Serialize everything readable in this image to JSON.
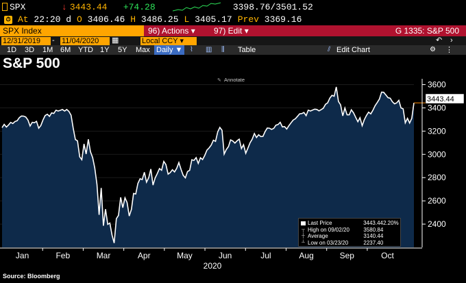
{
  "ticker": {
    "symbol": "SPX",
    "arrow": "↓",
    "last": "3443.44",
    "change": "+74.28",
    "range": "3398.76/3501.52"
  },
  "quote": {
    "at_label": "At",
    "at_time": "22:20 d",
    "open_label": "O",
    "open": "3406.46",
    "high_label": "H",
    "high": "3486.25",
    "low_label": "L",
    "low": "3405.17",
    "prev_label": "Prev",
    "prev": "3369.16"
  },
  "toolbar": {
    "security": "SPX Index",
    "actions": "96) Actions",
    "edit": "97) Edit",
    "function": "G 1335: S&P 500"
  },
  "dates": {
    "start": "12/31/2019",
    "end": "11/04/2020",
    "dash": "-",
    "currency": "Local CCY"
  },
  "periods": [
    "1D",
    "3D",
    "1M",
    "6M",
    "YTD",
    "1Y",
    "5Y",
    "Max"
  ],
  "period_active": "Daily ▼",
  "tools": {
    "table": "Table",
    "edit_chart": "Edit Chart"
  },
  "chart_title": "S&P 500",
  "annotate": "Annotate",
  "source": "Source: Bloomberg",
  "last_price_tag": "3443.44",
  "legend": {
    "rows": [
      {
        "label": "Last Price",
        "value": "3443.44",
        "pct": "2.20%"
      },
      {
        "label": "High on 09/02/20",
        "value": "3580.84",
        "pct": ""
      },
      {
        "label": "Average",
        "value": "3140.44",
        "pct": ""
      },
      {
        "label": "Low on 03/23/20",
        "value": "2237.40",
        "pct": ""
      }
    ]
  },
  "colors": {
    "accent": "#ffa500",
    "bar": "#b0122f",
    "line": "#ffffff",
    "area": "#0e2a4a",
    "up": "#2ee65a",
    "down": "#ff3b30"
  },
  "chart_data": {
    "type": "area",
    "title": "S&P 500",
    "x_axis_labels": [
      "Jan",
      "Feb",
      "Mar",
      "Apr",
      "May",
      "Jun",
      "Jul",
      "Aug",
      "Sep",
      "Oct"
    ],
    "x_year_label": "2020",
    "y_ticks": [
      2400,
      2600,
      2800,
      3000,
      3200,
      3400,
      3600
    ],
    "ylim": [
      2200,
      3650
    ],
    "series": [
      {
        "values": [
          3230,
          3258,
          3235,
          3253,
          3275,
          3265,
          3283,
          3289,
          3316,
          3330,
          3329,
          3321,
          3295,
          3244,
          3276,
          3273,
          3284,
          3225,
          3248,
          3297,
          3334,
          3345,
          3327,
          3357,
          3352,
          3380,
          3373,
          3379,
          3386,
          3373,
          3386,
          3370,
          3337,
          3226,
          3128,
          3116,
          2979,
          2954,
          3090,
          3003,
          3130,
          3023,
          2972,
          2882,
          2741,
          2480,
          2711,
          2386,
          2529,
          2398,
          2409,
          2305,
          2237,
          2447,
          2475,
          2630,
          2541,
          2626,
          2585,
          2470,
          2527,
          2664,
          2660,
          2750,
          2790,
          2783,
          2846,
          2761,
          2799,
          2874,
          2736,
          2797,
          2836,
          2878,
          2863,
          2939,
          2912,
          2830,
          2843,
          2868,
          2849,
          2881,
          2930,
          2870,
          2820,
          2798,
          2852,
          2863,
          2954,
          2948,
          2972,
          2922,
          2971,
          2955,
          2991,
          3036,
          3055,
          3080,
          3122,
          3112,
          3193,
          3232,
          3207,
          3002,
          3041,
          3067,
          3125,
          3115,
          3097,
          3117,
          3131,
          3050,
          3083,
          3009,
          3053,
          3100,
          3130,
          3179,
          3145,
          3169,
          3153,
          3155,
          3197,
          3227,
          3225,
          3215,
          3224,
          3251,
          3257,
          3276,
          3236,
          3239,
          3218,
          3246,
          3271,
          3295,
          3306,
          3327,
          3349,
          3351,
          3360,
          3333,
          3380,
          3373,
          3381,
          3389,
          3386,
          3374,
          3385,
          3397,
          3431,
          3443,
          3484,
          3508,
          3500,
          3580,
          3455,
          3426,
          3331,
          3399,
          3340,
          3340,
          3383,
          3357,
          3319,
          3281,
          3315,
          3246,
          3298,
          3335,
          3363,
          3348,
          3380,
          3419,
          3446,
          3477,
          3535,
          3534,
          3511,
          3488,
          3483,
          3453,
          3435,
          3443,
          3465,
          3400,
          3391,
          3271,
          3310,
          3269,
          3310,
          3443
        ]
      }
    ]
  }
}
